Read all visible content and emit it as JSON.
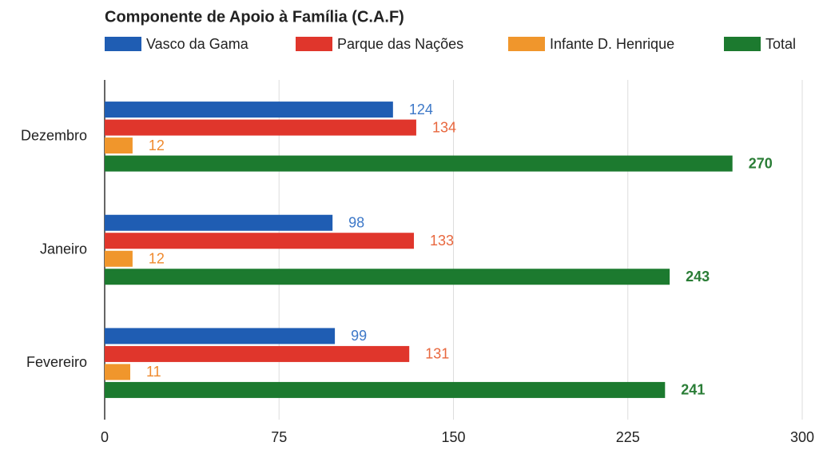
{
  "chart_data": {
    "type": "bar",
    "orientation": "horizontal",
    "title": "Componente de Apoio à Família (C.A.F)",
    "categories": [
      "Dezembro",
      "Janeiro",
      "Fevereiro"
    ],
    "series": [
      {
        "name": "Vasco da Gama",
        "color": "#1f5db3",
        "label_color": "#3d78c8",
        "values": [
          124,
          98,
          99
        ]
      },
      {
        "name": "Parque das Nações",
        "color": "#e0362c",
        "label_color": "#e8673e",
        "values": [
          134,
          133,
          131
        ]
      },
      {
        "name": "Infante D. Henrique",
        "color": "#f0962c",
        "label_color": "#ef8a2e",
        "values": [
          12,
          12,
          11
        ]
      },
      {
        "name": "Total",
        "color": "#1c7a2f",
        "label_color": "#2a7d36",
        "values": [
          270,
          243,
          241
        ]
      }
    ],
    "xlim": [
      0,
      300
    ],
    "xticks": [
      0,
      75,
      150,
      225,
      300
    ],
    "grid": true,
    "legend": "top"
  }
}
